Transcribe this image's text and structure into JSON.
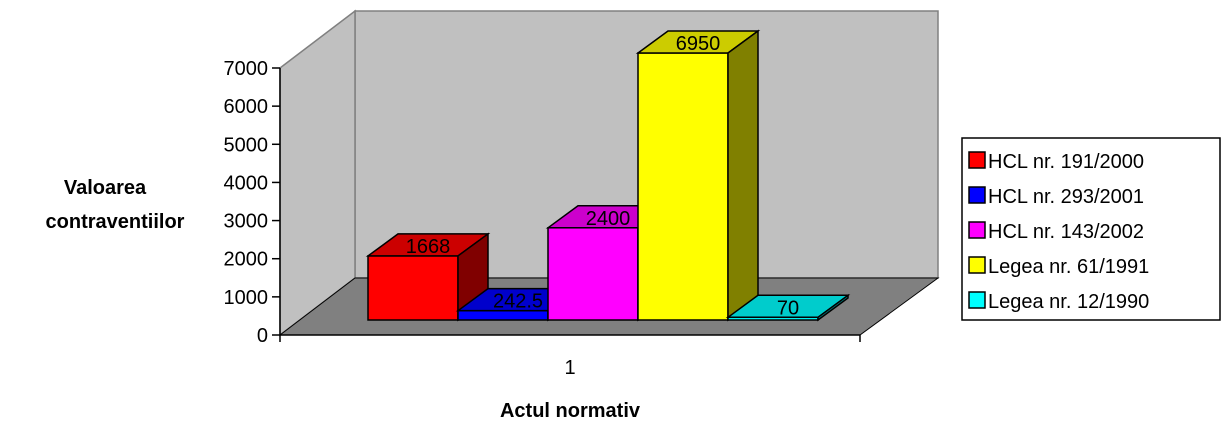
{
  "chart_data": {
    "type": "bar",
    "categories": [
      "1"
    ],
    "series": [
      {
        "name": "HCL nr. 191/2000",
        "values": [
          1668
        ],
        "label": "1668",
        "color": "#ff0000",
        "side": "#800000",
        "top": "#cc0000"
      },
      {
        "name": "HCL nr. 293/2001",
        "values": [
          242.5
        ],
        "label": "242.5",
        "color": "#0000ff",
        "side": "#000080",
        "top": "#0000cc"
      },
      {
        "name": "HCL nr. 143/2002",
        "values": [
          2400
        ],
        "label": "2400",
        "color": "#ff00ff",
        "side": "#800080",
        "top": "#cc00cc"
      },
      {
        "name": "Legea nr. 61/1991",
        "values": [
          6950
        ],
        "label": "6950",
        "color": "#ffff00",
        "side": "#808000",
        "top": "#cccc00"
      },
      {
        "name": "Legea nr. 12/1990",
        "values": [
          70
        ],
        "label": "70",
        "color": "#00ffff",
        "side": "#008080",
        "top": "#00cccc"
      }
    ],
    "ylabel_lines": [
      "Valoarea",
      "contraventiilor"
    ],
    "xlabel": "Actul normativ",
    "ylim": [
      0,
      7000
    ],
    "yticks": [
      "0",
      "1000",
      "2000",
      "3000",
      "4000",
      "5000",
      "6000",
      "7000"
    ],
    "legend_position": "right",
    "wall_color": "#c0c0c0",
    "floor_color": "#808080"
  }
}
